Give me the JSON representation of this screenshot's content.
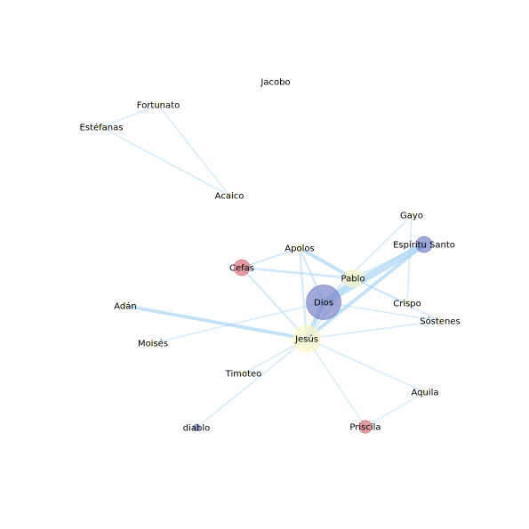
{
  "graph": {
    "nodes": [
      {
        "id": "dios",
        "label": "Dios",
        "weight": 10,
        "color": "#7b84c9"
      },
      {
        "id": "espiritu",
        "label": "Espíritu Santo",
        "weight": 4,
        "color": "#7b84c9"
      },
      {
        "id": "jesus",
        "label": "Jesús",
        "weight": 8,
        "color": "#fbf6c4"
      },
      {
        "id": "pablo",
        "label": "Pablo",
        "weight": 5,
        "color": "#fbf6c4"
      },
      {
        "id": "cefas",
        "label": "Cefas",
        "weight": 4,
        "color": "#d8707a"
      },
      {
        "id": "priscila",
        "label": "Priscila",
        "weight": 3,
        "color": "#d8707a"
      },
      {
        "id": "diablo",
        "label": "diablo",
        "weight": 1,
        "color": "#7b84c9"
      },
      {
        "id": "apolos",
        "label": "Apolos",
        "weight": 2,
        "color": "#fbf6c4"
      },
      {
        "id": "gayo",
        "label": "Gayo",
        "weight": 1,
        "color": "#fbf6c4"
      },
      {
        "id": "crispo",
        "label": "Crispo",
        "weight": 1,
        "color": "#fbf6c4"
      },
      {
        "id": "sostenes",
        "label": "Sóstenes",
        "weight": 1,
        "color": "#fbf6c4"
      },
      {
        "id": "adan",
        "label": "Adán",
        "weight": 1,
        "color": "#fbf6c4"
      },
      {
        "id": "moises",
        "label": "Moisés",
        "weight": 1,
        "color": "#fbf6c4"
      },
      {
        "id": "timoteo",
        "label": "Timoteo",
        "weight": 1,
        "color": "#fbf6c4"
      },
      {
        "id": "aquila",
        "label": "Aquila",
        "weight": 1,
        "color": "#fbf6c4"
      },
      {
        "id": "jacobo",
        "label": "Jacobo",
        "weight": 0,
        "color": "#fbf6c4"
      },
      {
        "id": "fortunato",
        "label": "Fortunato",
        "weight": 1,
        "color": "#fbf6c4"
      },
      {
        "id": "estefanas",
        "label": "Estéfanas",
        "weight": 1,
        "color": "#fbf6c4"
      },
      {
        "id": "acaico",
        "label": "Acaico",
        "weight": 1,
        "color": "#fbf6c4"
      }
    ],
    "edges": [
      {
        "source": "dios",
        "target": "espiritu",
        "weight": 6
      },
      {
        "source": "dios",
        "target": "jesus",
        "weight": 4
      },
      {
        "source": "adan",
        "target": "jesus",
        "weight": 3
      },
      {
        "source": "apolos",
        "target": "pablo",
        "weight": 3
      },
      {
        "source": "jesus",
        "target": "espiritu",
        "weight": 3
      },
      {
        "source": "cefas",
        "target": "pablo",
        "weight": 2
      },
      {
        "source": "cefas",
        "target": "apolos",
        "weight": 1.5
      },
      {
        "source": "cefas",
        "target": "jesus",
        "weight": 1.5
      },
      {
        "source": "apolos",
        "target": "jesus",
        "weight": 1.5
      },
      {
        "source": "apolos",
        "target": "dios",
        "weight": 1.5
      },
      {
        "source": "pablo",
        "target": "dios",
        "weight": 1.5
      },
      {
        "source": "pablo",
        "target": "jesus",
        "weight": 1.5
      },
      {
        "source": "pablo",
        "target": "espiritu",
        "weight": 1.5
      },
      {
        "source": "pablo",
        "target": "crispo",
        "weight": 1
      },
      {
        "source": "pablo",
        "target": "sostenes",
        "weight": 1
      },
      {
        "source": "dios",
        "target": "sostenes",
        "weight": 1
      },
      {
        "source": "jesus",
        "target": "sostenes",
        "weight": 1
      },
      {
        "source": "crispo",
        "target": "gayo",
        "weight": 1
      },
      {
        "source": "gayo",
        "target": "dios",
        "weight": 1
      },
      {
        "source": "moises",
        "target": "dios",
        "weight": 1
      },
      {
        "source": "jesus",
        "target": "timoteo",
        "weight": 1
      },
      {
        "source": "jesus",
        "target": "priscila",
        "weight": 1
      },
      {
        "source": "jesus",
        "target": "aquila",
        "weight": 1
      },
      {
        "source": "aquila",
        "target": "priscila",
        "weight": 1
      },
      {
        "source": "jesus",
        "target": "diablo",
        "weight": 1
      },
      {
        "source": "fortunato",
        "target": "estefanas",
        "weight": 1
      },
      {
        "source": "fortunato",
        "target": "acaico",
        "weight": 1
      },
      {
        "source": "estefanas",
        "target": "acaico",
        "weight": 1
      }
    ]
  },
  "colors": {
    "edge": "#a9d5f5",
    "node_stroke": "#6f79b8",
    "background": "#ffffff"
  }
}
